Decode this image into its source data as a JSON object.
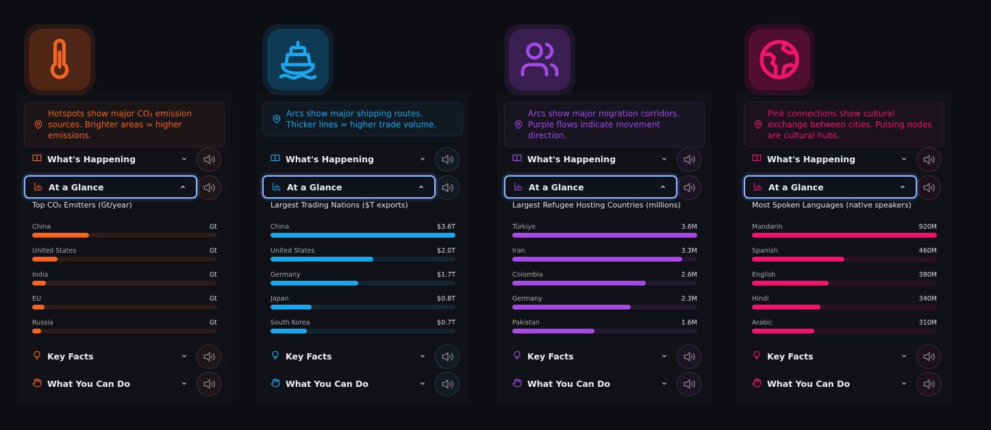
{
  "panels": [
    {
      "hint": "Hotspots show major CO₂ emission sources. Brighter areas = higher emissions.",
      "sections": [
        "What's Happening",
        "At a Glance",
        "Key Facts",
        "What You Can Do"
      ],
      "chart_data": {
        "type": "bar",
        "title": "Top CO₂ Emitters (Gt/year)",
        "color": "#f26522",
        "categories": [
          "China",
          "United States",
          "India",
          "EU",
          "Russia"
        ],
        "values": [
          11.4,
          5.1,
          2.7,
          2.5,
          1.8
        ],
        "value_labels": [
          "Gt",
          "Gt",
          "Gt",
          "Gt",
          "Gt"
        ],
        "xlim": [
          0,
          37
        ]
      }
    },
    {
      "hint": "Arcs show major shipping routes. Thicker lines = higher trade volume.",
      "sections": [
        "What's Happening",
        "At a Glance",
        "Key Facts",
        "What You Can Do"
      ],
      "chart_data": {
        "type": "bar",
        "title": "Largest Trading Nations ($T exports)",
        "color": "#1aa7ec",
        "categories": [
          "China",
          "United States",
          "Germany",
          "Japan",
          "South Korea"
        ],
        "values": [
          3.6,
          2.0,
          1.7,
          0.8,
          0.7
        ],
        "value_labels": [
          "$3.6T",
          "$2.0T",
          "$1.7T",
          "$0.8T",
          "$0.7T"
        ],
        "xlim": [
          0,
          3.6
        ]
      }
    },
    {
      "hint": "Arcs show major migration corridors. Purple flows indicate movement direction.",
      "sections": [
        "What's Happening",
        "At a Glance",
        "Key Facts",
        "What You Can Do"
      ],
      "chart_data": {
        "type": "bar",
        "title": "Largest Refugee Hosting Countries (millions)",
        "color": "#a64ae6",
        "categories": [
          "Türkiye",
          "Iran",
          "Colombia",
          "Germany",
          "Pakistan"
        ],
        "values": [
          3.6,
          3.3,
          2.6,
          2.3,
          1.6
        ],
        "value_labels": [
          "3.6M",
          "3.3M",
          "2.6M",
          "2.3M",
          "1.6M"
        ],
        "xlim": [
          0,
          3.6
        ]
      }
    },
    {
      "hint": "Pink connections show cultural exchange between cities. Pulsing nodes are cultural hubs.",
      "sections": [
        "What's Happening",
        "At a Glance",
        "Key Facts",
        "What You Can Do"
      ],
      "chart_data": {
        "type": "bar",
        "title": "Most Spoken Languages (native speakers)",
        "color": "#f0146a",
        "categories": [
          "Mandarin",
          "Spanish",
          "English",
          "Hindi",
          "Arabic"
        ],
        "values": [
          920,
          460,
          380,
          340,
          310
        ],
        "value_labels": [
          "920M",
          "460M",
          "380M",
          "340M",
          "310M"
        ],
        "xlim": [
          0,
          920
        ]
      }
    }
  ]
}
